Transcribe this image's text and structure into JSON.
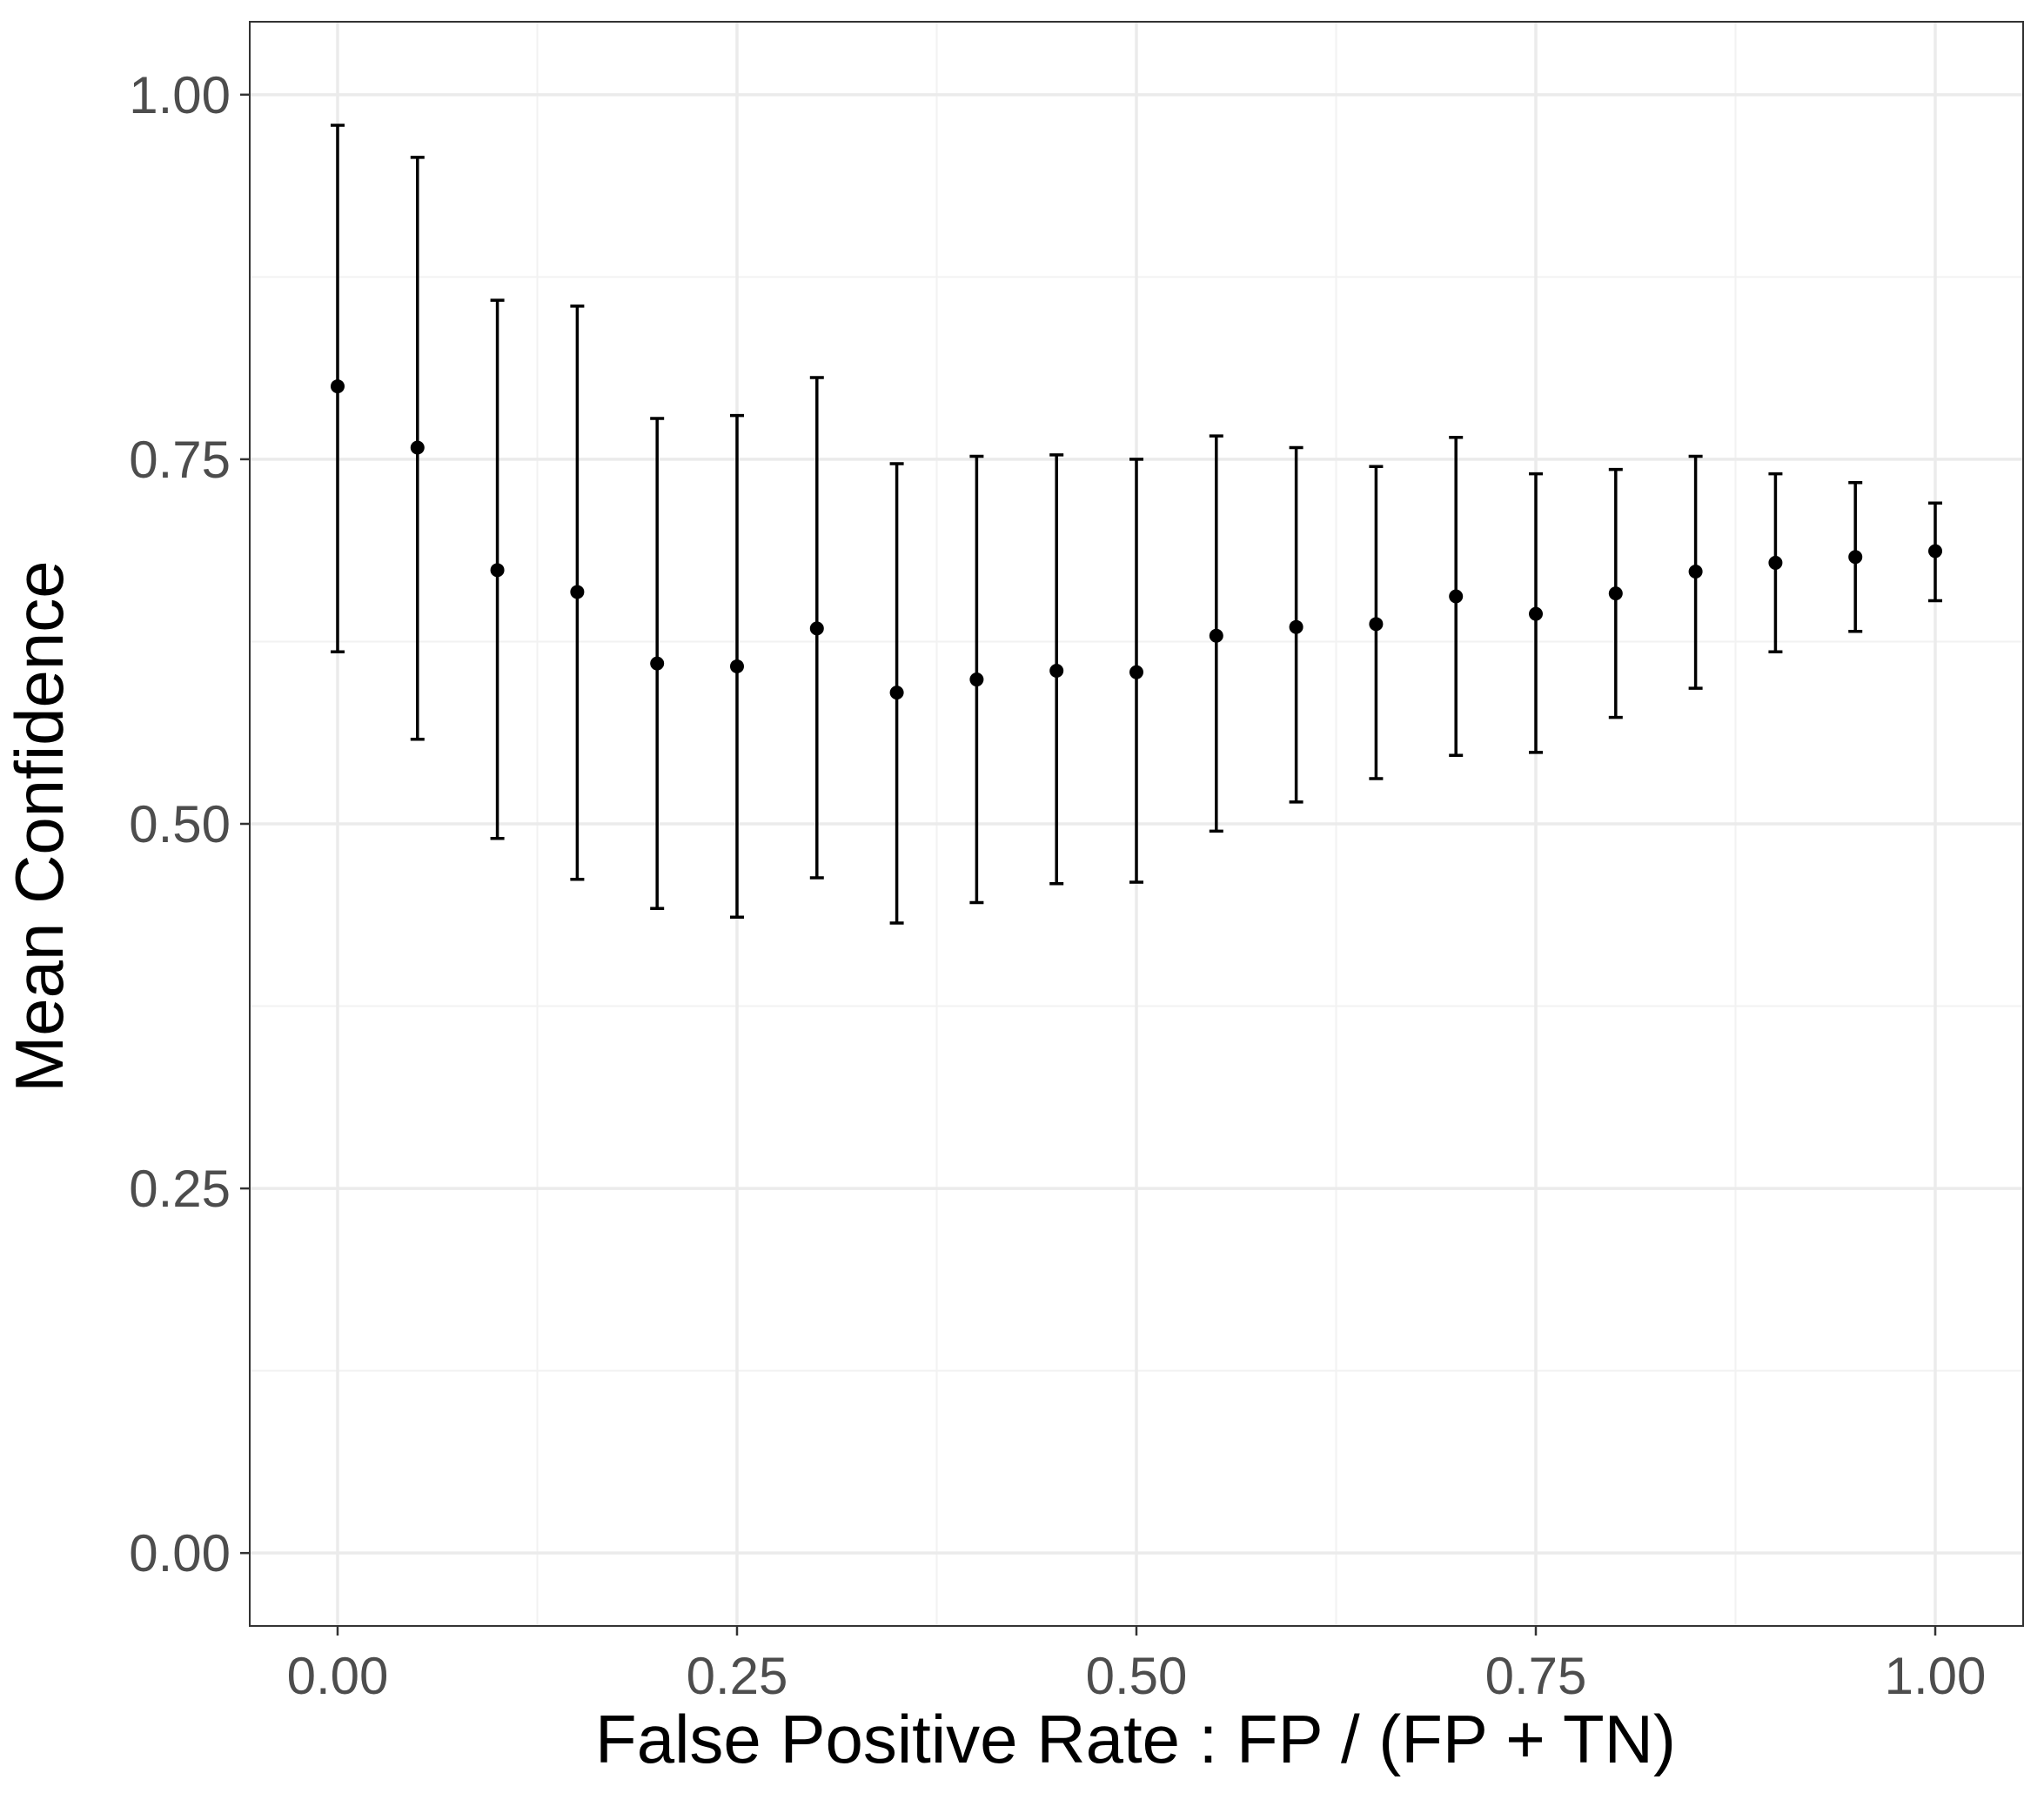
{
  "chart_data": {
    "type": "scatter",
    "title": "",
    "xlabel": "False Positive Rate : FP / (FP + TN)",
    "ylabel": "Mean Confidence",
    "xlim": [
      -0.055,
      1.055
    ],
    "ylim": [
      -0.05,
      1.05
    ],
    "x_ticks": [
      0,
      0.25,
      0.5,
      0.75,
      1
    ],
    "x_tick_labels": [
      "0.00",
      "0.25",
      "0.50",
      "0.75",
      "1.00"
    ],
    "y_ticks": [
      0,
      0.25,
      0.5,
      0.75,
      1
    ],
    "y_tick_labels": [
      "0.00",
      "0.25",
      "0.50",
      "0.75",
      "1.00"
    ],
    "grid": true,
    "legend": "none",
    "series": [
      {
        "x": [
          0,
          0.05,
          0.1,
          0.15,
          0.2,
          0.25,
          0.3,
          0.35,
          0.4,
          0.45,
          0.5,
          0.55,
          0.6,
          0.65,
          0.7,
          0.75,
          0.8,
          0.85,
          0.9,
          0.95,
          1
        ],
        "y": [
          0.8,
          0.758,
          0.674,
          0.659,
          0.61,
          0.608,
          0.634,
          0.59,
          0.599,
          0.605,
          0.604,
          0.629,
          0.635,
          0.637,
          0.656,
          0.644,
          0.658,
          0.673,
          0.679,
          0.683,
          0.687
        ],
        "lower": [
          0.618,
          0.558,
          0.49,
          0.462,
          0.442,
          0.436,
          0.463,
          0.432,
          0.446,
          0.459,
          0.46,
          0.495,
          0.515,
          0.531,
          0.547,
          0.549,
          0.573,
          0.593,
          0.618,
          0.632,
          0.653
        ],
        "upper": [
          0.979,
          0.957,
          0.859,
          0.855,
          0.778,
          0.78,
          0.806,
          0.747,
          0.752,
          0.753,
          0.75,
          0.766,
          0.758,
          0.745,
          0.765,
          0.74,
          0.743,
          0.752,
          0.74,
          0.734,
          0.72
        ]
      }
    ],
    "colors": {
      "panel_border": "#333333",
      "grid_major": "#ebebeb",
      "grid_minor": "#f2f2f2",
      "points": "#000000",
      "tick_text": "#4d4d4d",
      "title_text": "#000000"
    }
  }
}
